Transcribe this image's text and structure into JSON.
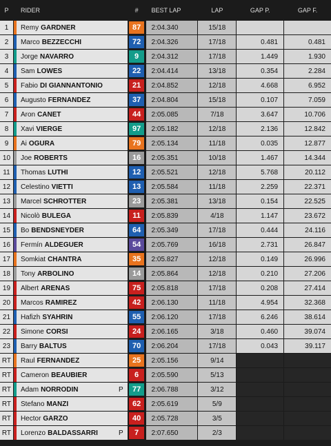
{
  "header": {
    "columns": [
      "P",
      "RIDER",
      "#",
      "BEST LAP",
      "LAP",
      "GAP P.",
      "GAP F."
    ]
  },
  "rows": [
    {
      "pos": "1",
      "first": "Remy",
      "last": "GARDNER",
      "number": "87",
      "color": "#e8731e",
      "best_lap": "2:04.340",
      "lap": "15/18"
    },
    {
      "pos": "2",
      "first": "Marco",
      "last": "BEZZECCHI",
      "number": "72",
      "color": "#1f5fb0",
      "best_lap": "2:04.326",
      "lap": "17/18",
      "gap_p": "0.481",
      "gap_f": "0.481"
    },
    {
      "pos": "3",
      "first": "Jorge",
      "last": "NAVARRO",
      "number": "9",
      "color": "#139c8a",
      "best_lap": "2:04.312",
      "lap": "17/18",
      "gap_p": "1.449",
      "gap_f": "1.930"
    },
    {
      "pos": "4",
      "first": "Sam",
      "last": "LOWES",
      "number": "22",
      "color": "#1f5fb0",
      "best_lap": "2:04.414",
      "lap": "13/18",
      "gap_p": "0.354",
      "gap_f": "2.284"
    },
    {
      "pos": "5",
      "first": "Fabio",
      "last": "DI GIANNANTONIO",
      "number": "21",
      "color": "#c8201e",
      "best_lap": "2:04.852",
      "lap": "12/18",
      "gap_p": "4.668",
      "gap_f": "6.952"
    },
    {
      "pos": "6",
      "first": "Augusto",
      "last": "FERNANDEZ",
      "number": "37",
      "color": "#1f5fb0",
      "best_lap": "2:04.804",
      "lap": "15/18",
      "gap_p": "0.107",
      "gap_f": "7.059"
    },
    {
      "pos": "7",
      "first": "Aron",
      "last": "CANET",
      "number": "44",
      "color": "#c8201e",
      "best_lap": "2:05.085",
      "lap": "7/18",
      "gap_p": "3.647",
      "gap_f": "10.706"
    },
    {
      "pos": "8",
      "first": "Xavi",
      "last": "VIERGE",
      "number": "97",
      "color": "#139c8a",
      "best_lap": "2:05.182",
      "lap": "12/18",
      "gap_p": "2.136",
      "gap_f": "12.842"
    },
    {
      "pos": "9",
      "first": "Ai",
      "last": "OGURA",
      "number": "79",
      "color": "#e8731e",
      "best_lap": "2:05.134",
      "lap": "11/18",
      "gap_p": "0.035",
      "gap_f": "12.877"
    },
    {
      "pos": "10",
      "first": "Joe",
      "last": "ROBERTS",
      "number": "16",
      "color": "#9a9a9a",
      "best_lap": "2:05.351",
      "lap": "10/18",
      "gap_p": "1.467",
      "gap_f": "14.344"
    },
    {
      "pos": "11",
      "first": "Thomas",
      "last": "LUTHI",
      "number": "12",
      "color": "#1f5fb0",
      "best_lap": "2:05.521",
      "lap": "12/18",
      "gap_p": "5.768",
      "gap_f": "20.112"
    },
    {
      "pos": "12",
      "first": "Celestino",
      "last": "VIETTI",
      "number": "13",
      "color": "#1f5fb0",
      "best_lap": "2:05.584",
      "lap": "11/18",
      "gap_p": "2.259",
      "gap_f": "22.371"
    },
    {
      "pos": "13",
      "first": "Marcel",
      "last": "SCHROTTER",
      "number": "23",
      "color": "#9a9a9a",
      "best_lap": "2:05.381",
      "lap": "13/18",
      "gap_p": "0.154",
      "gap_f": "22.525"
    },
    {
      "pos": "14",
      "first": "Nicolò",
      "last": "BULEGA",
      "number": "11",
      "color": "#c8201e",
      "best_lap": "2:05.839",
      "lap": "4/18",
      "gap_p": "1.147",
      "gap_f": "23.672"
    },
    {
      "pos": "15",
      "first": "Bo",
      "last": "BENDSNEYDER",
      "number": "64",
      "color": "#1f5fb0",
      "best_lap": "2:05.349",
      "lap": "17/18",
      "gap_p": "0.444",
      "gap_f": "24.116"
    },
    {
      "pos": "16",
      "first": "Fermín",
      "last": "ALDEGUER",
      "number": "54",
      "color": "#5a4a9c",
      "best_lap": "2:05.769",
      "lap": "16/18",
      "gap_p": "2.731",
      "gap_f": "26.847"
    },
    {
      "pos": "17",
      "first": "Somkiat",
      "last": "CHANTRA",
      "number": "35",
      "color": "#e8731e",
      "best_lap": "2:05.827",
      "lap": "12/18",
      "gap_p": "0.149",
      "gap_f": "26.996"
    },
    {
      "pos": "18",
      "first": "Tony",
      "last": "ARBOLINO",
      "number": "14",
      "color": "#9a9a9a",
      "best_lap": "2:05.864",
      "lap": "12/18",
      "gap_p": "0.210",
      "gap_f": "27.206"
    },
    {
      "pos": "19",
      "first": "Albert",
      "last": "ARENAS",
      "number": "75",
      "color": "#c8201e",
      "best_lap": "2:05.818",
      "lap": "17/18",
      "gap_p": "0.208",
      "gap_f": "27.414"
    },
    {
      "pos": "20",
      "first": "Marcos",
      "last": "RAMIREZ",
      "number": "42",
      "color": "#c8201e",
      "best_lap": "2:06.130",
      "lap": "11/18",
      "gap_p": "4.954",
      "gap_f": "32.368"
    },
    {
      "pos": "21",
      "first": "Hafizh",
      "last": "SYAHRIN",
      "number": "55",
      "color": "#1f5fb0",
      "best_lap": "2:06.120",
      "lap": "17/18",
      "gap_p": "6.246",
      "gap_f": "38.614"
    },
    {
      "pos": "22",
      "first": "Simone",
      "last": "CORSI",
      "number": "24",
      "color": "#c8201e",
      "best_lap": "2:06.165",
      "lap": "3/18",
      "gap_p": "0.460",
      "gap_f": "39.074"
    },
    {
      "pos": "23",
      "first": "Barry",
      "last": "BALTUS",
      "number": "70",
      "color": "#1f5fb0",
      "best_lap": "2:06.204",
      "lap": "17/18",
      "gap_p": "0.043",
      "gap_f": "39.117"
    },
    {
      "pos": "RT",
      "first": "Raul",
      "last": "FERNANDEZ",
      "number": "25",
      "color": "#e8731e",
      "best_lap": "2:05.156",
      "lap": "9/14"
    },
    {
      "pos": "RT",
      "first": "Cameron",
      "last": "BEAUBIER",
      "number": "6",
      "color": "#c8201e",
      "best_lap": "2:05.590",
      "lap": "5/13"
    },
    {
      "pos": "RT",
      "first": "Adam",
      "last": "NORRODIN",
      "flag": "P",
      "number": "77",
      "color": "#139c8a",
      "best_lap": "2:06.788",
      "lap": "3/12"
    },
    {
      "pos": "RT",
      "first": "Stefano",
      "last": "MANZI",
      "number": "62",
      "color": "#c8201e",
      "best_lap": "2:05.619",
      "lap": "5/9"
    },
    {
      "pos": "RT",
      "first": "Hector",
      "last": "GARZO",
      "number": "40",
      "color": "#c8201e",
      "best_lap": "2:05.728",
      "lap": "3/5"
    },
    {
      "pos": "RT",
      "first": "Lorenzo",
      "last": "BALDASSARRI",
      "flag": "P",
      "number": "7",
      "color": "#c8201e",
      "best_lap": "2:07.650",
      "lap": "2/3"
    }
  ]
}
